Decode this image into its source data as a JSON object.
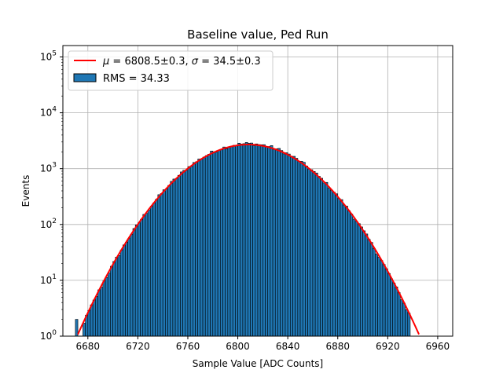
{
  "chart_data": {
    "type": "bar",
    "title": "Baseline value, Ped Run",
    "xlabel": "Sample Value [ADC Counts]",
    "ylabel": "Events",
    "xlim": [
      6660,
      6972
    ],
    "ylim": [
      1,
      160000
    ],
    "yscale": "log",
    "grid": true,
    "legend_position": "top-left",
    "x_ticks": [
      "6680",
      "6720",
      "6760",
      "6800",
      "6840",
      "6880",
      "6920",
      "6960"
    ],
    "y_ticks": [
      {
        "base": "10",
        "exp": "0"
      },
      {
        "base": "10",
        "exp": "1"
      },
      {
        "base": "10",
        "exp": "2"
      },
      {
        "base": "10",
        "exp": "3"
      },
      {
        "base": "10",
        "exp": "4"
      },
      {
        "base": "10",
        "exp": "5"
      }
    ],
    "histogram": {
      "name": "RMS = 34.33",
      "color": "#1f77b4",
      "edge_color": "#000000",
      "bin_start": 6670,
      "bin_width": 2,
      "mean": 6808.5,
      "sigma": 34.3,
      "peak": 2800,
      "last_bin_start": 6936
    },
    "fit": {
      "color": "#ff0000",
      "mu": 6808.5,
      "sigma": 34.5,
      "amplitude": 2700,
      "label_parts": {
        "mu_symbol": "μ",
        "mu_value": " = 6808.5±0.3, ",
        "sigma_symbol": "σ",
        "sigma_value": " = 34.5±0.3"
      }
    }
  }
}
